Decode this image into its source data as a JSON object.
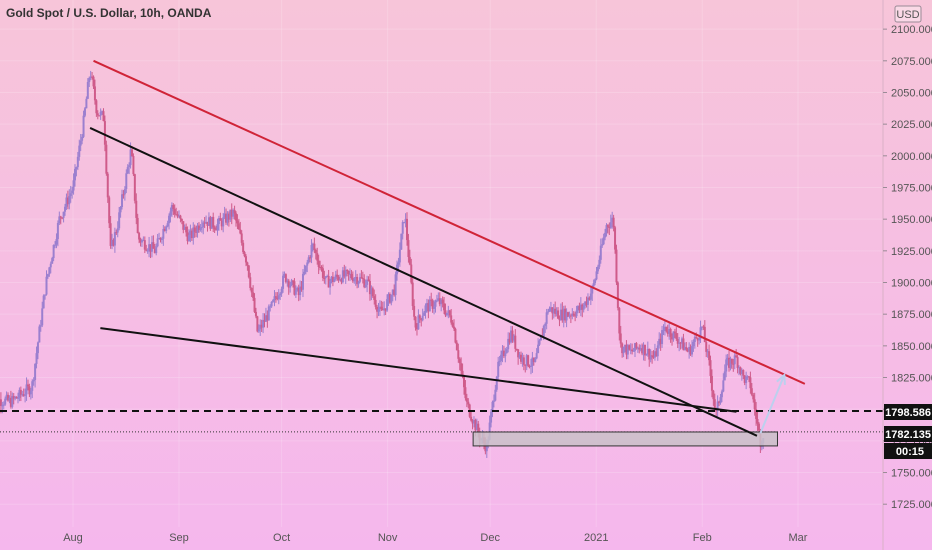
{
  "header": {
    "symbol_title": "Gold Spot / U.S. Dollar, 10h, OANDA",
    "currency_button": "USD"
  },
  "price_badges": {
    "dashed_level": "1798.586",
    "last_price": "1782.135",
    "countdown": "00:15"
  },
  "colors": {
    "background_top": "#f7c5d9",
    "background_bottom": "#f5b7ed",
    "candle_up": "#9b7fcf",
    "candle_down": "#cf5b8a",
    "resistance_line": "#d02438",
    "support_line": "#111111",
    "projection_arrow": "#bcd0ee",
    "zone_fill": "#c9c0c8"
  },
  "chart_data": {
    "type": "candlestick",
    "title": "Gold Spot / U.S. Dollar, 10h, OANDA",
    "xlabel": "",
    "ylabel": "",
    "ylim": [
      1707,
      2123
    ],
    "x_ticks": [
      "Aug",
      "Sep",
      "Oct",
      "Nov",
      "Dec",
      "2021",
      "Feb",
      "Mar"
    ],
    "x_tick_dates": [
      "2020-08-01",
      "2020-09-01",
      "2020-10-01",
      "2020-11-01",
      "2020-12-01",
      "2021-01-01",
      "2021-02-01",
      "2021-03-01"
    ],
    "y_ticks": [
      1725,
      1750,
      1775,
      1800,
      1825,
      1850,
      1875,
      1900,
      1925,
      1950,
      1975,
      2000,
      2025,
      2050,
      2075,
      2100
    ],
    "close_path": [
      [
        "2020-07-08",
        1808
      ],
      [
        "2020-07-14",
        1806
      ],
      [
        "2020-07-20",
        1818
      ],
      [
        "2020-07-24",
        1898
      ],
      [
        "2020-07-28",
        1950
      ],
      [
        "2020-08-01",
        1975
      ],
      [
        "2020-08-04",
        2025
      ],
      [
        "2020-08-06",
        2068
      ],
      [
        "2020-08-08",
        2035
      ],
      [
        "2020-08-10",
        2030
      ],
      [
        "2020-08-12",
        1925
      ],
      [
        "2020-08-14",
        1945
      ],
      [
        "2020-08-18",
        2005
      ],
      [
        "2020-08-20",
        1935
      ],
      [
        "2020-08-25",
        1925
      ],
      [
        "2020-08-30",
        1960
      ],
      [
        "2020-09-04",
        1935
      ],
      [
        "2020-09-08",
        1950
      ],
      [
        "2020-09-12",
        1945
      ],
      [
        "2020-09-17",
        1955
      ],
      [
        "2020-09-21",
        1915
      ],
      [
        "2020-09-24",
        1860
      ],
      [
        "2020-09-28",
        1880
      ],
      [
        "2020-10-02",
        1905
      ],
      [
        "2020-10-06",
        1890
      ],
      [
        "2020-10-10",
        1930
      ],
      [
        "2020-10-14",
        1900
      ],
      [
        "2020-10-18",
        1905
      ],
      [
        "2020-10-22",
        1905
      ],
      [
        "2020-10-26",
        1900
      ],
      [
        "2020-10-30",
        1875
      ],
      [
        "2020-11-03",
        1895
      ],
      [
        "2020-11-06",
        1955
      ],
      [
        "2020-11-09",
        1865
      ],
      [
        "2020-11-12",
        1880
      ],
      [
        "2020-11-16",
        1885
      ],
      [
        "2020-11-20",
        1870
      ],
      [
        "2020-11-24",
        1805
      ],
      [
        "2020-11-28",
        1778
      ],
      [
        "2020-11-30",
        1770
      ],
      [
        "2020-12-03",
        1830
      ],
      [
        "2020-12-07",
        1860
      ],
      [
        "2020-12-10",
        1840
      ],
      [
        "2020-12-14",
        1835
      ],
      [
        "2020-12-18",
        1880
      ],
      [
        "2020-12-21",
        1875
      ],
      [
        "2020-12-24",
        1875
      ],
      [
        "2020-12-28",
        1880
      ],
      [
        "2020-12-31",
        1895
      ],
      [
        "2021-01-04",
        1945
      ],
      [
        "2021-01-06",
        1950
      ],
      [
        "2021-01-08",
        1850
      ],
      [
        "2021-01-11",
        1845
      ],
      [
        "2021-01-14",
        1850
      ],
      [
        "2021-01-18",
        1840
      ],
      [
        "2021-01-21",
        1865
      ],
      [
        "2021-01-25",
        1855
      ],
      [
        "2021-01-28",
        1845
      ],
      [
        "2021-02-01",
        1865
      ],
      [
        "2021-02-03",
        1835
      ],
      [
        "2021-02-05",
        1795
      ],
      [
        "2021-02-08",
        1835
      ],
      [
        "2021-02-11",
        1840
      ],
      [
        "2021-02-13",
        1825
      ],
      [
        "2021-02-15",
        1820
      ],
      [
        "2021-02-17",
        1790
      ],
      [
        "2021-02-18",
        1775
      ],
      [
        "2021-02-19",
        1782.135
      ]
    ],
    "trendlines": [
      {
        "name": "resistance",
        "from": [
          "2020-08-07",
          2075
        ],
        "to": [
          "2021-03-03",
          1820
        ]
      },
      {
        "name": "upper-support",
        "from": [
          "2020-08-06",
          2022
        ],
        "to": [
          "2021-02-17",
          1779
        ]
      },
      {
        "name": "lower-support",
        "from": [
          "2020-08-09",
          1864
        ],
        "to": [
          "2021-02-11",
          1798
        ]
      }
    ],
    "horizontal_levels": [
      {
        "name": "dashed-level",
        "value": 1798.586,
        "style": "dashed"
      },
      {
        "name": "last-price",
        "value": 1782.135,
        "style": "dotted"
      }
    ],
    "zone": {
      "from_date": "2020-11-26",
      "to_date": "2021-02-23",
      "low": 1771,
      "high": 1782
    },
    "projection_arrow": {
      "from": [
        "2021-02-18",
        1781
      ],
      "to": [
        "2021-02-25",
        1827
      ]
    }
  }
}
